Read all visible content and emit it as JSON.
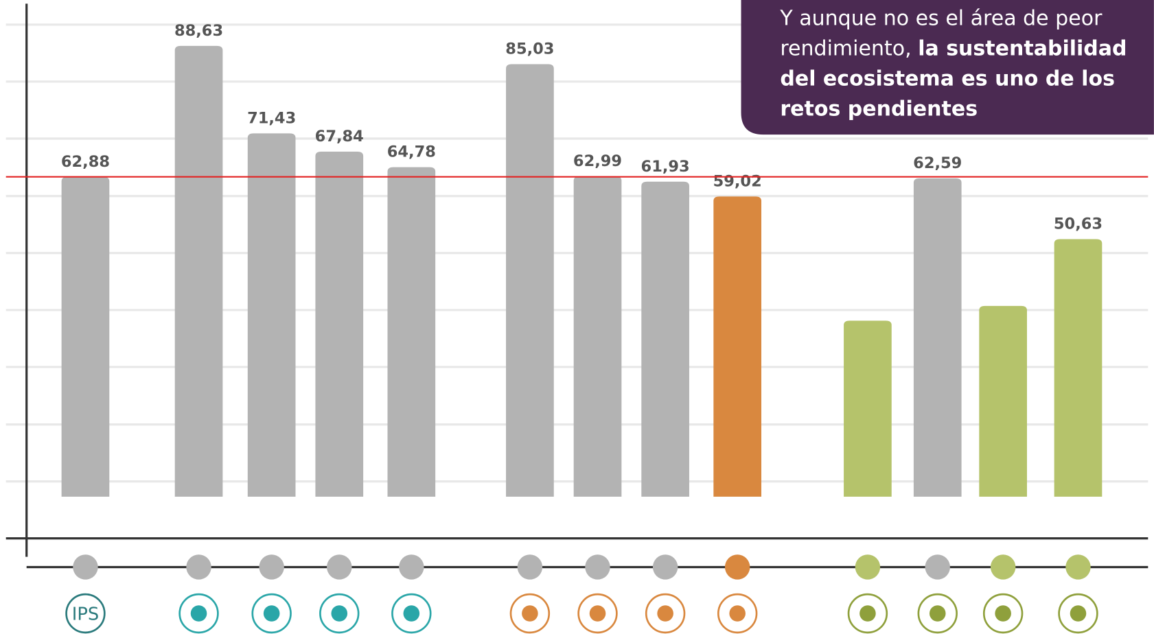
{
  "chart_data": {
    "type": "bar",
    "categories": [
      "IPS",
      null,
      null,
      null,
      null,
      null,
      null,
      null,
      null,
      null,
      null,
      null,
      null
    ],
    "values": [
      62.88,
      88.63,
      71.43,
      67.84,
      64.78,
      85.03,
      62.99,
      61.93,
      59.02,
      34.6,
      62.59,
      37.5,
      50.63
    ],
    "value_labels": [
      "62,88",
      "88,63",
      "71,43",
      "67,84",
      "64,78",
      "85,03",
      "62,99",
      "61,93",
      "59,02",
      null,
      "62,59",
      null,
      "50,63"
    ],
    "colors": [
      "#b3b3b3",
      "#b3b3b3",
      "#b3b3b3",
      "#b3b3b3",
      "#b3b3b3",
      "#b3b3b3",
      "#b3b3b3",
      "#b3b3b3",
      "#d9883f",
      "#b5c36b",
      "#b3b3b3",
      "#b5c36b",
      "#b5c36b"
    ],
    "ylim": [
      -8.2,
      96.2
    ],
    "yticks": [
      3.0,
      14.2,
      25.5,
      36.7,
      47.9,
      59.1,
      70.4,
      81.6,
      92.8
    ],
    "grid": true,
    "reference_line": 62.88,
    "reference_color": "#e32222",
    "callout": {
      "text": "Y aunque no es el área de peor rendimiento,",
      "bold": "la sustentabilidad del ecosistema es uno de los retos pendientes"
    }
  }
}
